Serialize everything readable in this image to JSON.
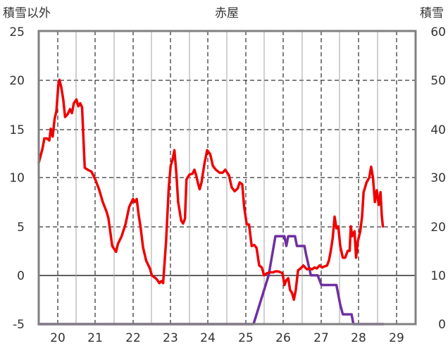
{
  "chart_data": {
    "type": "line",
    "title": "赤屋",
    "ylabel_left": "積雪以外",
    "ylabel_right": "積雪",
    "xlim": [
      19.5,
      29.5
    ],
    "ylim_left": [
      -5,
      25
    ],
    "ylim_right": [
      0,
      60
    ],
    "left_ticks": [
      "25",
      "20",
      "15",
      "10",
      "5",
      "0",
      "-5"
    ],
    "right_ticks": [
      "60",
      "50",
      "40",
      "30",
      "20",
      "10",
      "0"
    ],
    "x_ticks": [
      "20",
      "21",
      "22",
      "23",
      "24",
      "25",
      "26",
      "27",
      "28",
      "29"
    ],
    "grid": true,
    "colors": {
      "temperature": "#ee0000",
      "snow": "#7030a0",
      "frame": "#808080"
    },
    "series": [
      {
        "axis": "left",
        "color": "#ee0000",
        "points": [
          [
            19.5,
            11.5
          ],
          [
            19.6,
            13.0
          ],
          [
            19.65,
            14.0
          ],
          [
            19.72,
            14.0
          ],
          [
            19.78,
            13.8
          ],
          [
            19.82,
            15.0
          ],
          [
            19.87,
            14.2
          ],
          [
            19.92,
            16.0
          ],
          [
            19.97,
            16.8
          ],
          [
            20.02,
            19.5
          ],
          [
            20.05,
            20.0
          ],
          [
            20.1,
            19.2
          ],
          [
            20.15,
            18.0
          ],
          [
            20.2,
            16.2
          ],
          [
            20.27,
            16.5
          ],
          [
            20.33,
            17.0
          ],
          [
            20.38,
            16.6
          ],
          [
            20.43,
            17.6
          ],
          [
            20.5,
            18.0
          ],
          [
            20.55,
            17.3
          ],
          [
            20.6,
            17.6
          ],
          [
            20.65,
            17.2
          ],
          [
            20.72,
            11.0
          ],
          [
            20.8,
            10.8
          ],
          [
            20.9,
            10.6
          ],
          [
            21.0,
            9.8
          ],
          [
            21.1,
            8.8
          ],
          [
            21.2,
            7.5
          ],
          [
            21.3,
            6.5
          ],
          [
            21.35,
            5.8
          ],
          [
            21.45,
            3.0
          ],
          [
            21.55,
            2.4
          ],
          [
            21.6,
            3.2
          ],
          [
            21.7,
            4.0
          ],
          [
            21.8,
            5.2
          ],
          [
            21.9,
            7.0
          ],
          [
            22.0,
            7.8
          ],
          [
            22.05,
            7.5
          ],
          [
            22.1,
            7.8
          ],
          [
            22.15,
            6.2
          ],
          [
            22.2,
            5.0
          ],
          [
            22.27,
            2.8
          ],
          [
            22.35,
            1.5
          ],
          [
            22.45,
            0.7
          ],
          [
            22.5,
            0.0
          ],
          [
            22.6,
            -0.3
          ],
          [
            22.65,
            -0.5
          ],
          [
            22.7,
            -0.8
          ],
          [
            22.75,
            -0.6
          ],
          [
            22.8,
            -0.8
          ],
          [
            22.88,
            3.5
          ],
          [
            22.95,
            9.0
          ],
          [
            23.0,
            11.2
          ],
          [
            23.05,
            11.8
          ],
          [
            23.1,
            12.8
          ],
          [
            23.15,
            10.5
          ],
          [
            23.2,
            7.5
          ],
          [
            23.28,
            5.6
          ],
          [
            23.33,
            5.3
          ],
          [
            23.38,
            5.8
          ],
          [
            23.42,
            9.8
          ],
          [
            23.5,
            10.3
          ],
          [
            23.58,
            10.4
          ],
          [
            23.63,
            10.8
          ],
          [
            23.68,
            10.2
          ],
          [
            23.72,
            9.5
          ],
          [
            23.77,
            8.8
          ],
          [
            23.82,
            9.5
          ],
          [
            23.9,
            11.5
          ],
          [
            23.97,
            12.8
          ],
          [
            24.05,
            12.4
          ],
          [
            24.12,
            11.2
          ],
          [
            24.2,
            10.8
          ],
          [
            24.3,
            10.5
          ],
          [
            24.38,
            10.5
          ],
          [
            24.45,
            10.8
          ],
          [
            24.55,
            10.2
          ],
          [
            24.62,
            9.0
          ],
          [
            24.7,
            8.6
          ],
          [
            24.78,
            8.9
          ],
          [
            24.83,
            9.5
          ],
          [
            24.9,
            9.3
          ],
          [
            24.95,
            7.0
          ],
          [
            25.02,
            5.2
          ],
          [
            25.08,
            5.2
          ],
          [
            25.15,
            3.0
          ],
          [
            25.22,
            3.1
          ],
          [
            25.28,
            2.8
          ],
          [
            25.35,
            1.0
          ],
          [
            25.42,
            0.8
          ],
          [
            25.48,
            0.0
          ],
          [
            25.55,
            0.2
          ],
          [
            25.65,
            0.3
          ],
          [
            25.72,
            0.3
          ],
          [
            25.78,
            0.4
          ],
          [
            25.85,
            0.4
          ],
          [
            25.92,
            0.3
          ],
          [
            25.97,
            0.2
          ],
          [
            26.02,
            -1.0
          ],
          [
            26.07,
            -0.5
          ],
          [
            26.12,
            -0.3
          ],
          [
            26.17,
            -1.5
          ],
          [
            26.22,
            -1.8
          ],
          [
            26.27,
            -2.5
          ],
          [
            26.32,
            -1.5
          ],
          [
            26.38,
            0.5
          ],
          [
            26.45,
            0.7
          ],
          [
            26.52,
            1.0
          ],
          [
            26.57,
            0.8
          ],
          [
            26.62,
            0.6
          ],
          [
            26.68,
            0.7
          ],
          [
            26.75,
            0.6
          ],
          [
            26.82,
            0.8
          ],
          [
            26.88,
            0.7
          ],
          [
            26.95,
            1.0
          ],
          [
            27.02,
            0.8
          ],
          [
            27.08,
            0.9
          ],
          [
            27.15,
            1.0
          ],
          [
            27.2,
            1.5
          ],
          [
            27.25,
            2.5
          ],
          [
            27.3,
            3.8
          ],
          [
            27.35,
            6.0
          ],
          [
            27.4,
            4.8
          ],
          [
            27.45,
            5.0
          ],
          [
            27.5,
            3.0
          ],
          [
            27.57,
            1.8
          ],
          [
            27.63,
            1.8
          ],
          [
            27.7,
            2.5
          ],
          [
            27.75,
            2.5
          ],
          [
            27.78,
            5.0
          ],
          [
            27.82,
            4.0
          ],
          [
            27.88,
            4.5
          ],
          [
            27.92,
            1.8
          ],
          [
            27.97,
            3.5
          ],
          [
            28.03,
            4.5
          ],
          [
            28.08,
            6.0
          ],
          [
            28.12,
            8.5
          ],
          [
            28.2,
            9.5
          ],
          [
            28.27,
            10.0
          ],
          [
            28.32,
            11.1
          ],
          [
            28.37,
            10.0
          ],
          [
            28.42,
            7.5
          ],
          [
            28.47,
            8.7
          ],
          [
            28.52,
            7.2
          ],
          [
            28.57,
            8.5
          ],
          [
            28.6,
            6.2
          ],
          [
            28.63,
            5.0
          ]
        ]
      },
      {
        "axis": "right",
        "color": "#7030a0",
        "points": [
          [
            19.5,
            0
          ],
          [
            25.2,
            0
          ],
          [
            25.6,
            10
          ],
          [
            25.78,
            18
          ],
          [
            25.87,
            18
          ],
          [
            26.02,
            18
          ],
          [
            26.07,
            16
          ],
          [
            26.12,
            18
          ],
          [
            26.3,
            18
          ],
          [
            26.35,
            16
          ],
          [
            26.45,
            16
          ],
          [
            26.55,
            16
          ],
          [
            26.6,
            14
          ],
          [
            26.72,
            10
          ],
          [
            26.9,
            10
          ],
          [
            27.0,
            8
          ],
          [
            27.4,
            8
          ],
          [
            27.5,
            4
          ],
          [
            27.57,
            2
          ],
          [
            27.8,
            2
          ],
          [
            27.85,
            0
          ],
          [
            28.65,
            0
          ]
        ]
      }
    ]
  }
}
